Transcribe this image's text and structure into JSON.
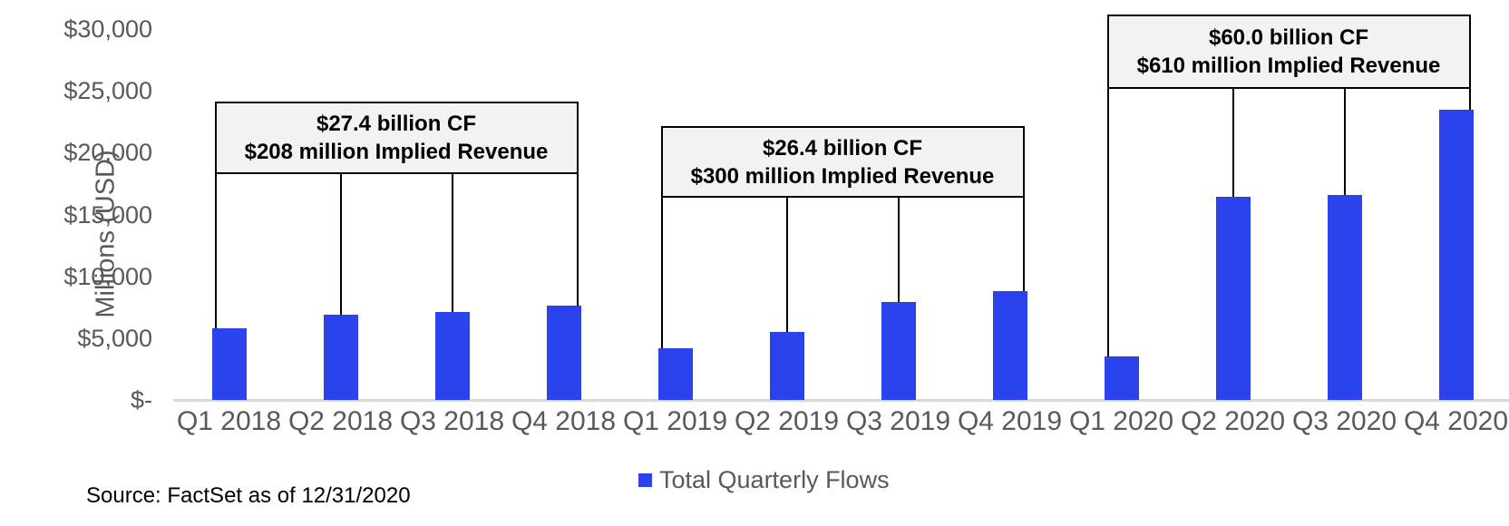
{
  "chart_data": {
    "type": "bar",
    "title": "",
    "xlabel": "",
    "ylabel": "Millions (USD)",
    "categories": [
      "Q1 2018",
      "Q2 2018",
      "Q3 2018",
      "Q4 2018",
      "Q1 2019",
      "Q2 2019",
      "Q3 2019",
      "Q4 2019",
      "Q1 2020",
      "Q2 2020",
      "Q3 2020",
      "Q4 2020"
    ],
    "series": [
      {
        "name": "Total Quarterly Flows",
        "values": [
          5800,
          6900,
          7100,
          7600,
          4200,
          5500,
          7900,
          8800,
          3500,
          16400,
          16600,
          23500
        ]
      }
    ],
    "ylim": [
      0,
      30000
    ],
    "ytick_step": 5000,
    "ytick_labels": [
      "$-",
      "$5,000",
      "$10,000",
      "$15,000",
      "$20,000",
      "$25,000",
      "$30,000"
    ],
    "grid": false,
    "legend_position": "bottom-center",
    "annotations": [
      {
        "line1": "$27.4 billion CF",
        "line2": "$208 million Implied Revenue",
        "span": [
          0,
          3
        ]
      },
      {
        "line1": "$26.4 billion CF",
        "line2": "$300 million Implied Revenue",
        "span": [
          4,
          7
        ]
      },
      {
        "line1": "$60.0 billion CF",
        "line2": "$610 million Implied Revenue",
        "span": [
          8,
          11
        ]
      }
    ]
  },
  "colors": {
    "bar": "#2A43EC",
    "axis_text": "#595959",
    "annotation_fill": "#F2F2F2",
    "annotation_border": "#000000",
    "baseline": "#D9D9D9",
    "source_text": "#000000"
  },
  "legend": {
    "label": "Total Quarterly Flows"
  },
  "source": {
    "text": "Source: FactSet as of 12/31/2020"
  }
}
